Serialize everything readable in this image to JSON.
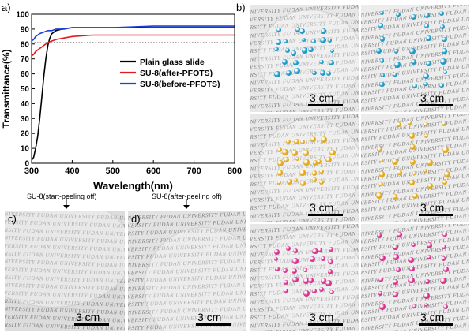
{
  "figure": {
    "panel_labels": {
      "a": "a)",
      "b": "b)",
      "c": "c)",
      "d": "d)"
    },
    "scale_label": "3 cm",
    "watermark_text": "UNIVERSITY FUDAN UNIVERSITY FUDAN UNIVERSITY FUDAN UNIVERSITY FUDAN UNIVERSITY",
    "caption_c": "SU-8(start-peeling off)",
    "caption_d": "SU-8(after-peeling off)",
    "drop_colors": {
      "blue": "#1e9ac6",
      "yellow": "#e3aa1e",
      "pink": "#d9338f"
    }
  },
  "chart_data": {
    "type": "line",
    "xlabel": "Wavelength(nm)",
    "ylabel": "Transmittance(%)",
    "xlim": [
      300,
      800
    ],
    "ylim": [
      0,
      100
    ],
    "xticks": [
      300,
      400,
      500,
      600,
      700,
      800
    ],
    "yticks": [
      0,
      10,
      20,
      30,
      40,
      50,
      60,
      70,
      80,
      90,
      100
    ],
    "reference_line_y": 81,
    "legend_position": "center-right",
    "series": [
      {
        "name": "Plain glass slide",
        "color": "#000000",
        "x": [
          300,
          305,
          310,
          315,
          320,
          325,
          330,
          335,
          340,
          345,
          350,
          360,
          375,
          400,
          450,
          500,
          600,
          700,
          800
        ],
        "y": [
          2,
          4,
          10,
          18,
          30,
          44,
          58,
          70,
          79,
          84,
          87,
          89,
          90,
          91,
          91,
          91,
          91,
          91,
          91
        ]
      },
      {
        "name": "SU-8(after-PFOTS)",
        "color": "#e31a1c",
        "x": [
          300,
          305,
          310,
          320,
          330,
          340,
          350,
          360,
          380,
          400,
          450,
          500,
          600,
          700,
          800
        ],
        "y": [
          72,
          73,
          75,
          77,
          79,
          81,
          82,
          83,
          84,
          85,
          86,
          86,
          86,
          86,
          86
        ]
      },
      {
        "name": "SU-8(before-PFOTS)",
        "color": "#1f3fd6",
        "x": [
          300,
          305,
          310,
          320,
          330,
          340,
          350,
          360,
          380,
          400,
          450,
          500,
          600,
          700,
          800
        ],
        "y": [
          82,
          83,
          85,
          87,
          88,
          89,
          89,
          90,
          90,
          91,
          91,
          91,
          92,
          92,
          92
        ]
      }
    ]
  }
}
